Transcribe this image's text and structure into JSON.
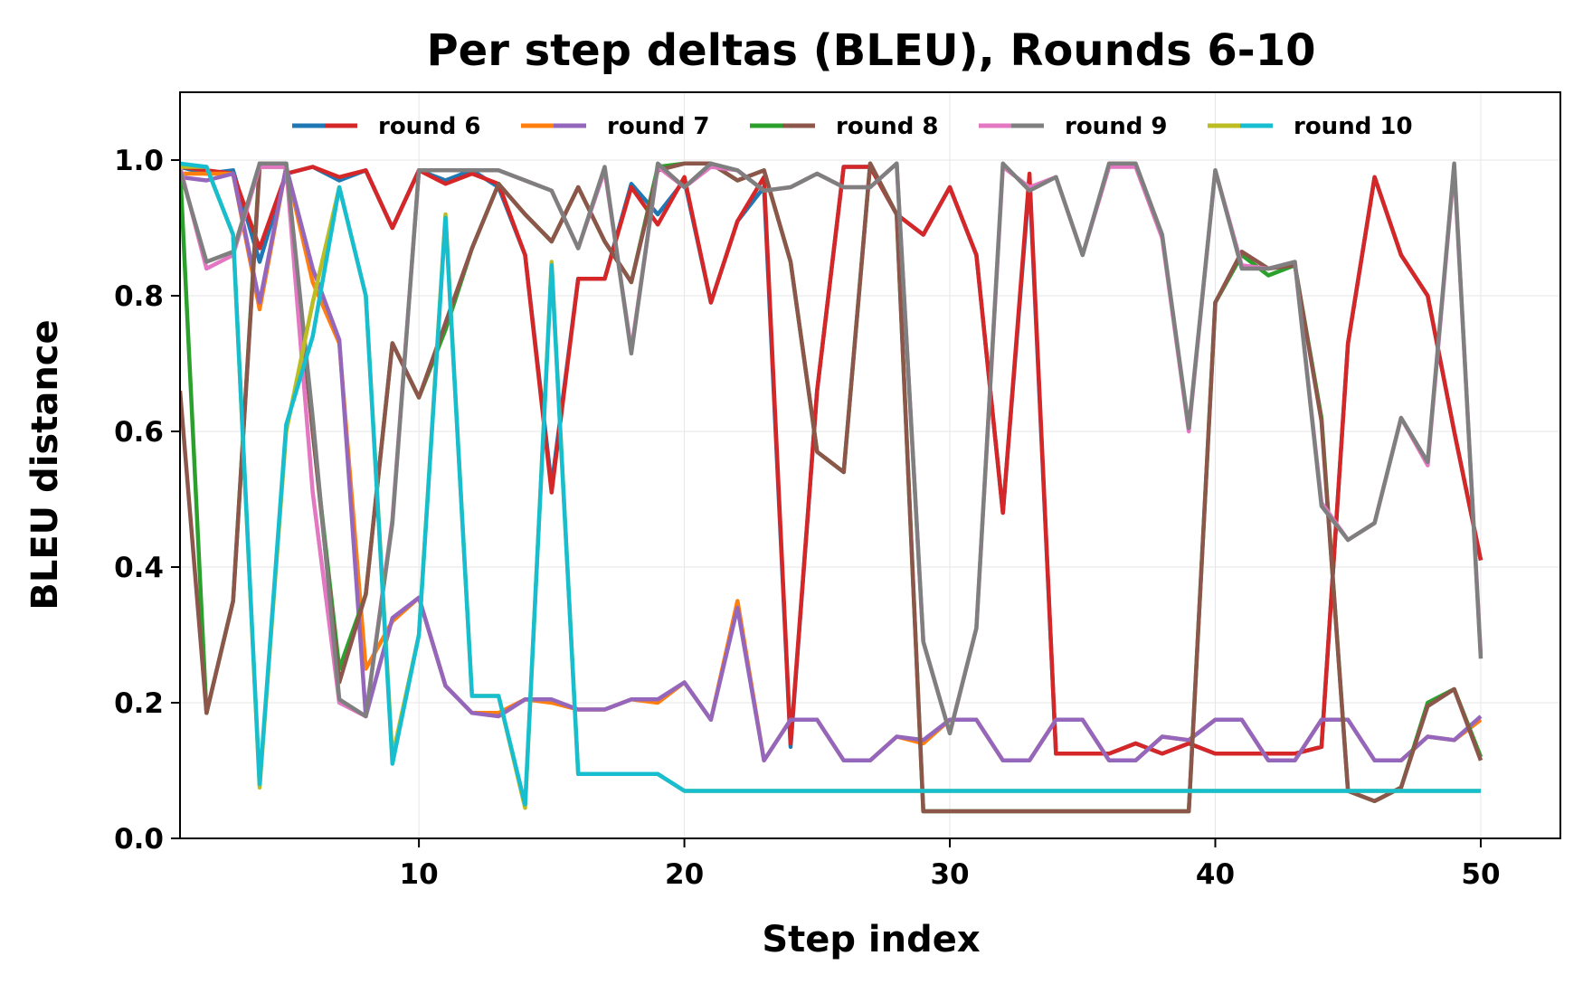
{
  "chart_data": {
    "type": "line",
    "title": "Per step deltas (BLEU), Rounds 6-10",
    "xlabel": "Step index",
    "ylabel": "BLEU distance",
    "xlim": [
      1,
      53
    ],
    "ylim": [
      0,
      1.1
    ],
    "xticks": [
      10,
      20,
      30,
      40,
      50
    ],
    "yticks": [
      0.0,
      0.2,
      0.4,
      0.6,
      0.8,
      1.0
    ],
    "xtick_labels": [
      "10",
      "20",
      "30",
      "40",
      "50"
    ],
    "ytick_labels": [
      "0.0",
      "0.2",
      "0.4",
      "0.6",
      "0.8",
      "1.0"
    ],
    "grid": true,
    "legend_position": "top-center",
    "legend": [
      {
        "label": "round 6",
        "colors": [
          "#1f77b4",
          "#d62728"
        ]
      },
      {
        "label": "round 7",
        "colors": [
          "#ff7f0e",
          "#9467bd"
        ]
      },
      {
        "label": "round 8",
        "colors": [
          "#2ca02c",
          "#8c564b"
        ]
      },
      {
        "label": "round 9",
        "colors": [
          "#e377c2",
          "#7f7f7f"
        ]
      },
      {
        "label": "round 10",
        "colors": [
          "#bcbd22",
          "#17becf"
        ]
      }
    ],
    "x": [
      1,
      2,
      3,
      4,
      5,
      6,
      7,
      8,
      9,
      10,
      11,
      12,
      13,
      14,
      15,
      16,
      17,
      18,
      19,
      20,
      21,
      22,
      23,
      24,
      25,
      26,
      27,
      28,
      29,
      30,
      31,
      32,
      33,
      34,
      35,
      36,
      37,
      38,
      39,
      40,
      41,
      42,
      43,
      44,
      45,
      46,
      47,
      48,
      49,
      50
    ],
    "series": [
      {
        "color": "#1f77b4",
        "values": [
          0.99,
          0.98,
          0.985,
          0.85,
          0.98,
          0.99,
          0.97,
          0.985,
          0.9,
          0.985,
          0.97,
          0.985,
          0.96,
          0.86,
          0.52,
          0.825,
          0.825,
          0.965,
          0.92,
          0.97,
          0.79,
          0.91,
          0.96,
          0.135,
          0.66,
          0.99,
          0.99,
          0.92,
          0.89,
          0.96,
          0.86,
          0.48,
          0.97,
          0.125,
          0.125,
          0.125,
          0.14,
          0.125,
          0.14,
          0.125,
          0.125,
          0.125,
          0.125,
          0.135,
          0.73,
          0.975,
          0.86,
          0.8,
          0.6,
          0.41
        ]
      },
      {
        "color": "#d62728",
        "values": [
          0.99,
          0.985,
          0.98,
          0.87,
          0.98,
          0.99,
          0.975,
          0.985,
          0.9,
          0.985,
          0.965,
          0.98,
          0.965,
          0.86,
          0.51,
          0.825,
          0.825,
          0.96,
          0.905,
          0.975,
          0.79,
          0.91,
          0.975,
          0.14,
          0.66,
          0.99,
          0.99,
          0.92,
          0.89,
          0.96,
          0.86,
          0.48,
          0.98,
          0.125,
          0.125,
          0.125,
          0.14,
          0.125,
          0.14,
          0.125,
          0.125,
          0.125,
          0.125,
          0.135,
          0.73,
          0.975,
          0.86,
          0.8,
          0.6,
          0.41
        ]
      },
      {
        "color": "#ff7f0e",
        "values": [
          0.98,
          0.98,
          0.98,
          0.78,
          0.99,
          0.82,
          0.73,
          0.25,
          0.32,
          0.355,
          0.225,
          0.185,
          0.185,
          0.205,
          0.2,
          0.19,
          0.19,
          0.205,
          0.2,
          0.23,
          0.175,
          0.35,
          0.115,
          0.175,
          0.175,
          0.115,
          0.115,
          0.15,
          0.14,
          0.175,
          0.175,
          0.115,
          0.115,
          0.175,
          0.175,
          0.115,
          0.115,
          0.15,
          0.145,
          0.175,
          0.175,
          0.115,
          0.115,
          0.175,
          0.175,
          0.115,
          0.115,
          0.15,
          0.145,
          0.175
        ]
      },
      {
        "color": "#9467bd",
        "values": [
          0.975,
          0.97,
          0.98,
          0.79,
          0.99,
          0.84,
          0.735,
          0.18,
          0.325,
          0.355,
          0.225,
          0.185,
          0.18,
          0.205,
          0.205,
          0.19,
          0.19,
          0.205,
          0.205,
          0.23,
          0.175,
          0.34,
          0.115,
          0.175,
          0.175,
          0.115,
          0.115,
          0.15,
          0.145,
          0.175,
          0.175,
          0.115,
          0.115,
          0.175,
          0.175,
          0.115,
          0.115,
          0.15,
          0.145,
          0.175,
          0.175,
          0.115,
          0.115,
          0.175,
          0.175,
          0.115,
          0.115,
          0.15,
          0.145,
          0.18
        ]
      },
      {
        "color": "#2ca02c",
        "values": [
          0.99,
          0.185,
          0.35,
          0.995,
          0.995,
          0.6,
          0.25,
          0.36,
          0.73,
          0.65,
          0.75,
          0.87,
          0.965,
          0.92,
          0.88,
          0.96,
          0.88,
          0.82,
          0.99,
          0.995,
          0.995,
          0.97,
          0.985,
          0.85,
          0.57,
          0.54,
          0.995,
          0.92,
          0.04,
          0.04,
          0.04,
          0.04,
          0.04,
          0.04,
          0.04,
          0.04,
          0.04,
          0.04,
          0.04,
          0.79,
          0.86,
          0.83,
          0.845,
          0.62,
          0.07,
          0.055,
          0.075,
          0.2,
          0.22,
          0.12
        ]
      },
      {
        "color": "#8c564b",
        "values": [
          0.66,
          0.185,
          0.35,
          0.99,
          0.99,
          0.6,
          0.23,
          0.36,
          0.73,
          0.65,
          0.76,
          0.87,
          0.965,
          0.92,
          0.88,
          0.96,
          0.88,
          0.82,
          0.985,
          0.995,
          0.995,
          0.97,
          0.985,
          0.85,
          0.57,
          0.54,
          0.995,
          0.92,
          0.04,
          0.04,
          0.04,
          0.04,
          0.04,
          0.04,
          0.04,
          0.04,
          0.04,
          0.04,
          0.04,
          0.79,
          0.865,
          0.84,
          0.845,
          0.615,
          0.07,
          0.055,
          0.075,
          0.195,
          0.22,
          0.115
        ]
      },
      {
        "color": "#e377c2",
        "values": [
          0.99,
          0.84,
          0.86,
          0.99,
          0.99,
          0.51,
          0.2,
          0.18,
          0.47,
          0.985,
          0.985,
          0.985,
          0.985,
          0.97,
          0.955,
          0.87,
          0.985,
          0.72,
          0.99,
          0.96,
          0.99,
          0.985,
          0.955,
          0.96,
          0.98,
          0.96,
          0.96,
          0.995,
          0.29,
          0.155,
          0.31,
          0.99,
          0.96,
          0.975,
          0.86,
          0.99,
          0.99,
          0.885,
          0.6,
          0.985,
          0.845,
          0.84,
          0.85,
          0.495,
          0.44,
          0.465,
          0.62,
          0.55,
          0.99,
          0.27
        ]
      },
      {
        "color": "#7f7f7f",
        "values": [
          0.985,
          0.85,
          0.865,
          0.995,
          0.995,
          0.62,
          0.205,
          0.18,
          0.465,
          0.985,
          0.985,
          0.985,
          0.985,
          0.97,
          0.955,
          0.87,
          0.99,
          0.715,
          0.995,
          0.96,
          0.995,
          0.985,
          0.955,
          0.96,
          0.98,
          0.96,
          0.96,
          0.995,
          0.29,
          0.155,
          0.31,
          0.995,
          0.955,
          0.975,
          0.86,
          0.995,
          0.995,
          0.89,
          0.605,
          0.985,
          0.84,
          0.84,
          0.85,
          0.49,
          0.44,
          0.465,
          0.62,
          0.555,
          0.995,
          0.265
        ]
      },
      {
        "color": "#bcbd22",
        "values": [
          0.99,
          0.99,
          0.89,
          0.075,
          0.6,
          0.79,
          0.96,
          0.8,
          0.12,
          0.3,
          0.92,
          0.21,
          0.21,
          0.045,
          0.85,
          0.095,
          0.095,
          0.095,
          0.095,
          0.07,
          0.07,
          0.07,
          0.07,
          0.07,
          0.07,
          0.07,
          0.07,
          0.07,
          0.07,
          0.07,
          0.07,
          0.07,
          0.07,
          0.07,
          0.07,
          0.07,
          0.07,
          0.07,
          0.07,
          0.07,
          0.07,
          0.07,
          0.07,
          0.07,
          0.07,
          0.07,
          0.07,
          0.07,
          0.07,
          0.07
        ]
      },
      {
        "color": "#17becf",
        "values": [
          0.995,
          0.99,
          0.89,
          0.08,
          0.61,
          0.74,
          0.96,
          0.8,
          0.11,
          0.3,
          0.915,
          0.21,
          0.21,
          0.05,
          0.845,
          0.095,
          0.095,
          0.095,
          0.095,
          0.07,
          0.07,
          0.07,
          0.07,
          0.07,
          0.07,
          0.07,
          0.07,
          0.07,
          0.07,
          0.07,
          0.07,
          0.07,
          0.07,
          0.07,
          0.07,
          0.07,
          0.07,
          0.07,
          0.07,
          0.07,
          0.07,
          0.07,
          0.07,
          0.07,
          0.07,
          0.07,
          0.07,
          0.07,
          0.07,
          0.07
        ]
      }
    ]
  }
}
